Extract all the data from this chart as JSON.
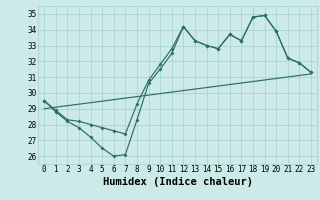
{
  "title": "",
  "xlabel": "Humidex (Indice chaleur)",
  "bg_color": "#cceae7",
  "grid_color": "#aad4d0",
  "line_color": "#2d6e62",
  "xlim": [
    -0.5,
    23.5
  ],
  "ylim": [
    25.5,
    35.5
  ],
  "xticks": [
    0,
    1,
    2,
    3,
    4,
    5,
    6,
    7,
    8,
    9,
    10,
    11,
    12,
    13,
    14,
    15,
    16,
    17,
    18,
    19,
    20,
    21,
    22,
    23
  ],
  "yticks": [
    26,
    27,
    28,
    29,
    30,
    31,
    32,
    33,
    34,
    35
  ],
  "line_main": [
    29.5,
    28.8,
    28.2,
    27.8,
    27.2,
    26.5,
    26.0,
    26.1,
    28.3,
    30.6,
    31.5,
    32.5,
    34.2,
    33.3,
    33.0,
    32.8,
    33.7,
    33.3,
    34.8,
    34.9,
    33.9,
    32.2,
    31.9,
    31.3
  ],
  "line_upper": [
    29.5,
    28.9,
    28.3,
    28.2,
    28.0,
    27.8,
    27.6,
    27.4,
    29.3,
    30.8,
    31.8,
    32.8,
    34.2,
    33.3,
    33.0,
    32.8,
    33.7,
    33.3,
    34.8,
    34.9,
    33.9,
    32.2,
    31.9,
    31.3
  ],
  "trend_x": [
    0,
    23
  ],
  "trend_y": [
    29.0,
    31.2
  ],
  "tick_fontsize": 5.5,
  "xlabel_fontsize": 7.5
}
